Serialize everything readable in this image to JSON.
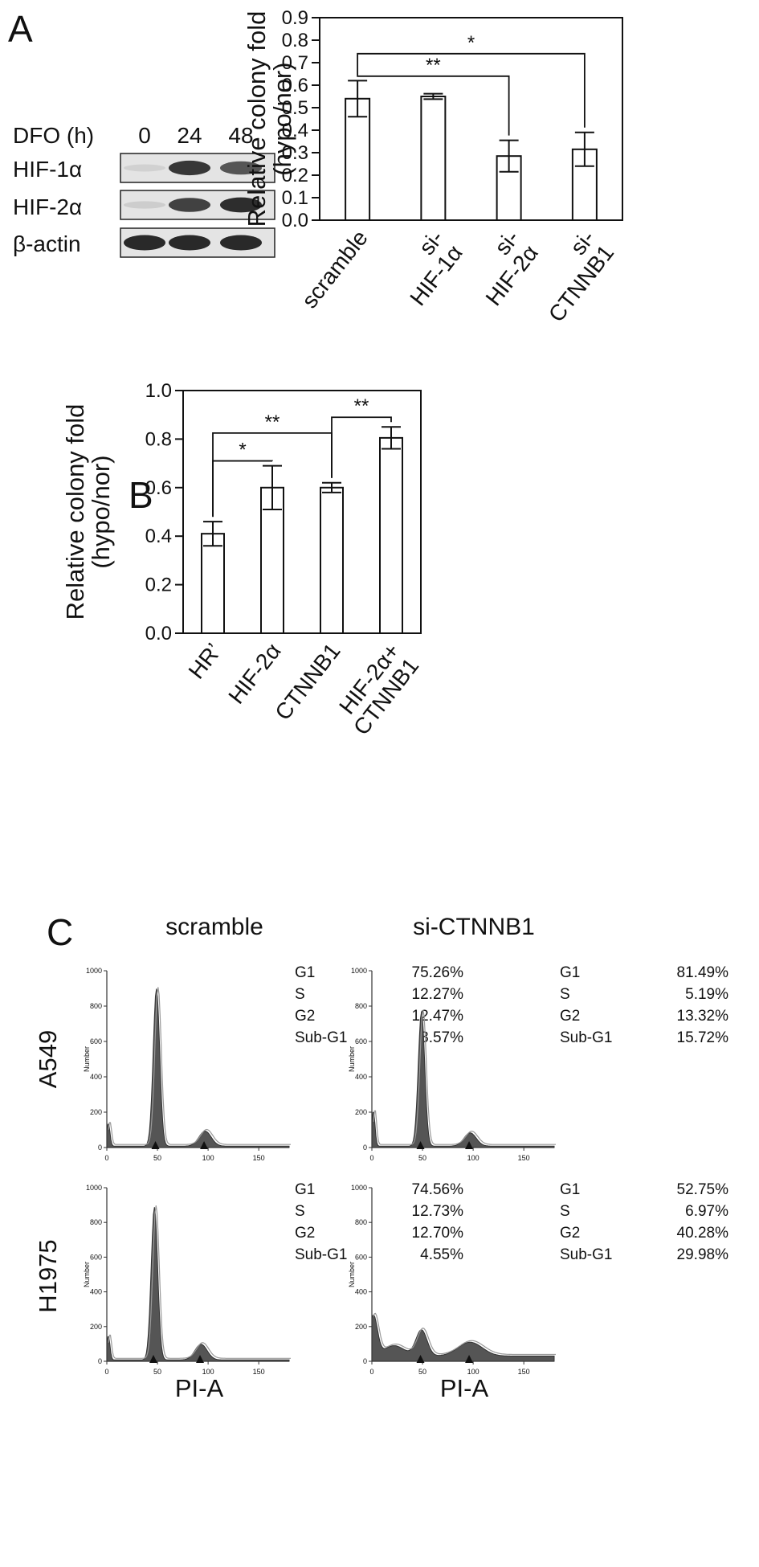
{
  "panel_a": {
    "letter": "A",
    "western_blot": {
      "treatment_label": "DFO (h)",
      "timepoints": [
        "0",
        "24",
        "48"
      ],
      "proteins": [
        {
          "name": "HIF-1α",
          "band_intensity": [
            0.08,
            0.85,
            0.7
          ]
        },
        {
          "name": "HIF-2α",
          "band_intensity": [
            0.1,
            0.8,
            0.9
          ]
        },
        {
          "name": "β-actin",
          "band_intensity": [
            0.92,
            0.92,
            0.92
          ]
        }
      ]
    }
  },
  "panel_b": {
    "letter": "B"
  },
  "panel_c": {
    "letter": "C"
  },
  "chart_data": [
    {
      "type": "bar",
      "panel": "A",
      "categories": [
        "scramble",
        "si-\nHIF-1α",
        "si-\nHIF-2α",
        "si-\nCTNNB1"
      ],
      "values": [
        0.54,
        0.55,
        0.285,
        0.315
      ],
      "errors": [
        0.08,
        0.012,
        0.07,
        0.075
      ],
      "ylabel": "Relative colony fold\n(hypo/nor)",
      "ylim": [
        0,
        0.9
      ],
      "yticks": [
        "0.0",
        "0.1",
        "0.2",
        "0.3",
        "0.4",
        "0.5",
        "0.6",
        "0.7",
        "0.8",
        "0.9"
      ],
      "significance": [
        {
          "from": 0,
          "to": 2,
          "label": "**"
        },
        {
          "from": 0,
          "to": 3,
          "label": "*"
        }
      ]
    },
    {
      "type": "bar",
      "panel": "B",
      "categories": [
        "HR’",
        "HIF-2α",
        "CTNNB1",
        "HIF-2α+\nCTNNB1"
      ],
      "values": [
        0.41,
        0.6,
        0.6,
        0.805
      ],
      "errors": [
        0.05,
        0.09,
        0.02,
        0.045
      ],
      "ylabel": "Relative colony fold\n(hypo/nor)",
      "ylim": [
        0,
        1.0
      ],
      "yticks": [
        "0.0",
        "0.2",
        "0.4",
        "0.6",
        "0.8",
        "1.0"
      ],
      "significance": [
        {
          "from": 0,
          "to": 1,
          "label": "*"
        },
        {
          "from": 0,
          "to": 2,
          "label": "**"
        },
        {
          "from": 2,
          "to": 3,
          "label": "**"
        }
      ]
    },
    {
      "type": "area",
      "panel": "C",
      "column_titles": [
        "scramble",
        "si-CTNNB1"
      ],
      "row_labels": [
        "A549",
        "H1975"
      ],
      "xlabel": "PI-A",
      "ylabel": "Number",
      "xlim": [
        0,
        180
      ],
      "ylim": [
        0,
        1000
      ],
      "xticks": [
        "0",
        "50",
        "100",
        "150"
      ],
      "yticks": [
        "0",
        "200",
        "400",
        "600",
        "800",
        "1000"
      ],
      "phase_names": [
        "G1",
        "S",
        "G2",
        "Sub-G1"
      ],
      "histograms": [
        {
          "cell_line": "A549",
          "condition": "scramble",
          "percentages": [
            "75.26%",
            "12.27%",
            "12.47%",
            "3.57%"
          ],
          "g1_peak": 890,
          "g2_peak": 85,
          "sub_g1_peak": 130,
          "arrows": [
            48,
            96
          ]
        },
        {
          "cell_line": "A549",
          "condition": "si-CTNNB1",
          "percentages": [
            "81.49%",
            "5.19%",
            "13.32%",
            "15.72%"
          ],
          "g1_peak": 760,
          "g2_peak": 75,
          "sub_g1_peak": 200,
          "arrows": [
            48,
            96
          ]
        },
        {
          "cell_line": "H1975",
          "condition": "scramble",
          "percentages": [
            "74.56%",
            "12.73%",
            "12.70%",
            "4.55%"
          ],
          "g1_peak": 880,
          "g2_peak": 90,
          "sub_g1_peak": 140,
          "arrows": [
            46,
            92
          ]
        },
        {
          "cell_line": "H1975",
          "condition": "si-CTNNB1",
          "percentages": [
            "52.75%",
            "6.97%",
            "40.28%",
            "29.98%"
          ],
          "g1_peak": 150,
          "g2_peak": 80,
          "sub_g1_peak": 230,
          "arrows": [
            48,
            96
          ]
        }
      ]
    }
  ]
}
